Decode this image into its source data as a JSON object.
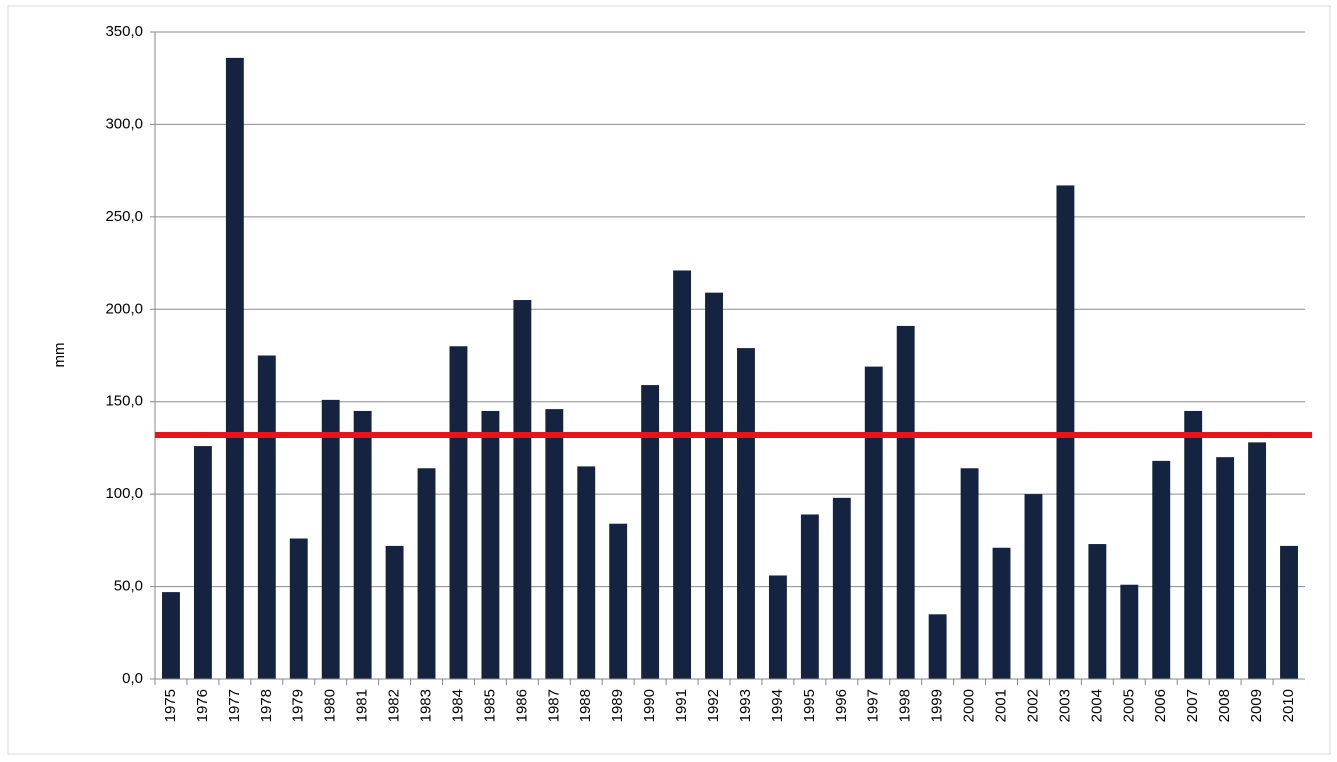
{
  "chart_data": {
    "type": "bar",
    "y_label": "mm",
    "categories": [
      "1975",
      "1976",
      "1977",
      "1978",
      "1979",
      "1980",
      "1981",
      "1982",
      "1983",
      "1984",
      "1985",
      "1986",
      "1987",
      "1988",
      "1989",
      "1990",
      "1991",
      "1992",
      "1993",
      "1994",
      "1995",
      "1996",
      "1997",
      "1998",
      "1999",
      "2000",
      "2001",
      "2002",
      "2003",
      "2004",
      "2005",
      "2006",
      "2007",
      "2008",
      "2009",
      "2010"
    ],
    "values": [
      47,
      126,
      336,
      175,
      76,
      151,
      145,
      72,
      114,
      180,
      145,
      205,
      146,
      115,
      84,
      159,
      221,
      209,
      179,
      56,
      89,
      98,
      169,
      191,
      35,
      114,
      71,
      100,
      267,
      73,
      51,
      118,
      145,
      120,
      128,
      72
    ],
    "color": "#14233f",
    "reference_line": {
      "value": 132,
      "color": "#e8141b"
    },
    "ylim": [
      0,
      350
    ],
    "yticks": [
      {
        "value": 0,
        "label": "0,0"
      },
      {
        "value": 50,
        "label": "50,0"
      },
      {
        "value": 100,
        "label": "100,0"
      },
      {
        "value": 150,
        "label": "150,0"
      },
      {
        "value": 200,
        "label": "200,0"
      },
      {
        "value": 250,
        "label": "250,0"
      },
      {
        "value": 300,
        "label": "300,0"
      },
      {
        "value": 350,
        "label": "350,0"
      }
    ],
    "grid": true
  }
}
